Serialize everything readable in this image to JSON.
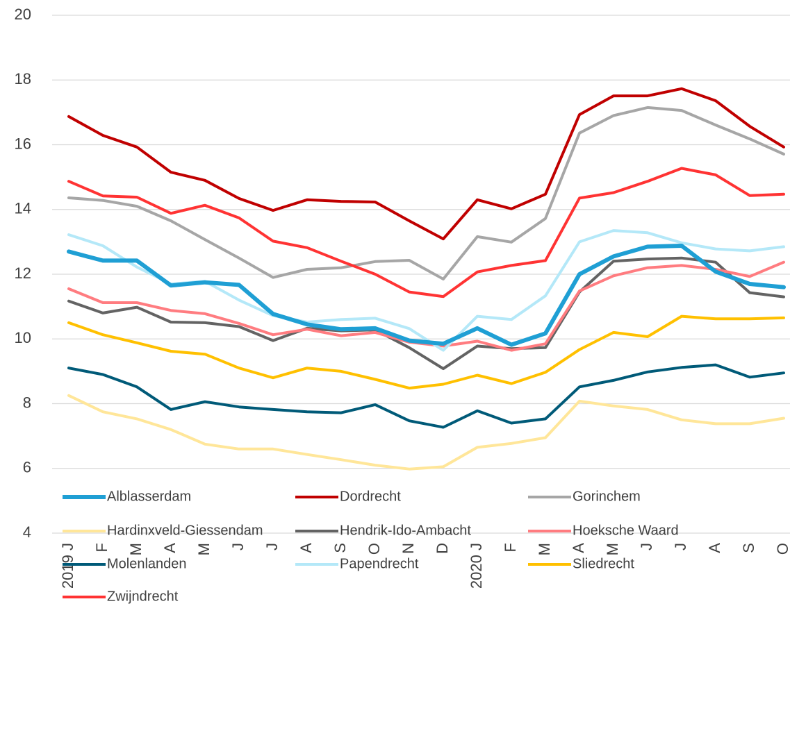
{
  "chart_data": {
    "type": "line",
    "categories": [
      "2019 J",
      "F",
      "M",
      "A",
      "M",
      "J",
      "J",
      "A",
      "S",
      "O",
      "N",
      "D",
      "2020 J",
      "F",
      "M",
      "A",
      "M",
      "J",
      "J",
      "A",
      "S",
      "O"
    ],
    "ylim": [
      4,
      20
    ],
    "yticks": [
      4,
      6,
      8,
      10,
      12,
      14,
      16,
      18,
      20
    ],
    "grid": true,
    "legend": "bottom",
    "series": [
      {
        "name": "Alblasserdam",
        "color": "#1f9fd4",
        "values": [
          12.7,
          12.42,
          12.42,
          11.65,
          11.75,
          11.67,
          10.77,
          10.45,
          10.3,
          10.33,
          9.95,
          9.85,
          10.33,
          9.82,
          10.17,
          12.0,
          12.55,
          12.85,
          12.88,
          12.08,
          11.7,
          11.6
        ]
      },
      {
        "name": "Dordrecht",
        "color": "#c00000",
        "values": [
          16.87,
          16.29,
          15.93,
          15.15,
          14.9,
          14.34,
          13.97,
          14.3,
          14.25,
          14.23,
          13.65,
          13.09,
          14.3,
          14.02,
          14.47,
          16.93,
          17.51,
          17.51,
          17.73,
          17.36,
          16.57,
          15.93
        ]
      },
      {
        "name": "Gorinchem",
        "color": "#a6a6a6",
        "values": [
          14.36,
          14.28,
          14.1,
          13.65,
          13.07,
          12.5,
          11.9,
          12.15,
          12.2,
          12.39,
          12.43,
          11.85,
          13.16,
          12.99,
          13.72,
          16.36,
          16.9,
          17.15,
          17.06,
          16.61,
          16.18,
          15.71
        ]
      },
      {
        "name": "Hardinxveld-Giessendam",
        "color": "#ffe699",
        "values": [
          8.25,
          7.75,
          7.53,
          7.2,
          6.75,
          6.6,
          6.6,
          6.43,
          6.27,
          6.1,
          5.98,
          6.05,
          6.65,
          6.77,
          6.95,
          8.08,
          7.93,
          7.82,
          7.5,
          7.38,
          7.38,
          7.55
        ]
      },
      {
        "name": "Hendrik-Ido-Ambacht",
        "color": "#636363",
        "values": [
          11.17,
          10.8,
          10.98,
          10.52,
          10.5,
          10.38,
          9.95,
          10.33,
          10.25,
          10.28,
          9.73,
          9.08,
          9.78,
          9.7,
          9.73,
          11.45,
          12.4,
          12.47,
          12.5,
          12.37,
          11.43,
          11.3
        ]
      },
      {
        "name": "Hoeksche Waard",
        "color": "#ff7c80",
        "values": [
          11.55,
          11.12,
          11.12,
          10.88,
          10.78,
          10.48,
          10.13,
          10.3,
          10.1,
          10.2,
          9.9,
          9.78,
          9.93,
          9.65,
          9.85,
          11.48,
          11.95,
          12.2,
          12.27,
          12.15,
          11.93,
          12.37
        ]
      },
      {
        "name": "Molenlanden",
        "color": "#005a78",
        "values": [
          9.1,
          8.9,
          8.52,
          7.82,
          8.06,
          7.9,
          7.82,
          7.75,
          7.72,
          7.97,
          7.47,
          7.27,
          7.78,
          7.4,
          7.53,
          8.52,
          8.72,
          8.98,
          9.12,
          9.2,
          8.82,
          8.95
        ]
      },
      {
        "name": "Papendrecht",
        "color": "#b4e8f8",
        "values": [
          13.22,
          12.88,
          12.22,
          11.7,
          11.78,
          11.2,
          10.72,
          10.52,
          10.6,
          10.64,
          10.32,
          9.65,
          10.7,
          10.6,
          11.33,
          13.0,
          13.35,
          13.28,
          12.97,
          12.78,
          12.72,
          12.85
        ]
      },
      {
        "name": "Sliedrecht",
        "color": "#ffc000",
        "values": [
          10.5,
          10.13,
          9.88,
          9.62,
          9.53,
          9.1,
          8.8,
          9.1,
          9.0,
          8.75,
          8.48,
          8.6,
          8.88,
          8.62,
          8.97,
          9.67,
          10.2,
          10.07,
          10.7,
          10.62,
          10.62,
          10.65
        ]
      },
      {
        "name": "Zwijndrecht",
        "color": "#ff3333",
        "values": [
          14.87,
          14.42,
          14.38,
          13.88,
          14.13,
          13.74,
          13.02,
          12.82,
          12.4,
          12.0,
          11.45,
          11.31,
          12.07,
          12.27,
          12.42,
          14.35,
          14.52,
          14.87,
          15.27,
          15.07,
          14.43,
          14.47
        ]
      }
    ]
  }
}
